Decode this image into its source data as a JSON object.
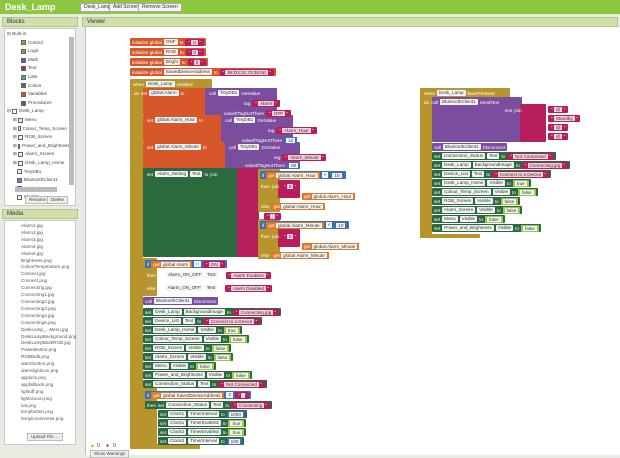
{
  "app": {
    "title": "Desk_Lamp",
    "screen_button": "Desk_Lamp ▾",
    "add_screen": "Add Screen ...",
    "remove_screen": "Remove Screen"
  },
  "blocks_panel": {
    "header": "Blocks",
    "builtin": "Built-in",
    "builtin_items": [
      {
        "label": "Control",
        "color": "#b8952c"
      },
      {
        "label": "Logic",
        "color": "#7da33a"
      },
      {
        "label": "Math",
        "color": "#3c6fb4"
      },
      {
        "label": "Text",
        "color": "#b81e5b"
      },
      {
        "label": "Lists",
        "color": "#4aa3b8"
      },
      {
        "label": "Colors",
        "color": "#666666"
      },
      {
        "label": "Variables",
        "color": "#d8572a"
      },
      {
        "label": "Procedures",
        "color": "#6a4a8c"
      }
    ],
    "screen": "Desk_Lamp",
    "components": [
      "Menu",
      "Colour_Temp_Screen",
      "RGB_Screen",
      "Power_and_Brightness",
      "Alarm_Screen",
      "Desk_Lamp_Home",
      "TinyDB1",
      "BluetoothClient1",
      "Clock1",
      "Clock2"
    ],
    "rename": "Rename",
    "delete": "Delete"
  },
  "media": {
    "header": "Media",
    "files": [
      "Alarm1.jpg",
      "Alarm2.jpg",
      "Alarm3.jpg",
      "Alarm4.jpg",
      "Alarm5.jpg",
      "Brightness.png",
      "ColourTemperature.png",
      "Connect.jpg",
      "Connect.png",
      "Connecting.jpg",
      "Connecting1.jpg",
      "Connecting2.jpg",
      "Connecting3.png",
      "Connecting4.jpg",
      "Connecting5.png",
      "DeskLamp_...Menu.jpg",
      "DeskLampBackground.png",
      "DeskLampBackRGB.jpg",
      "PowerButton.png",
      "RGBBulb.png",
      "alarmbutton.png",
      "alarmlighticon.png",
      "applock.png",
      "appfallback.png",
      "lightoff.png",
      "lightonicon.png",
      "sat.png",
      "tempbutton.png",
      "tempiconinverse.png"
    ],
    "upload": "Upload File ..."
  },
  "viewer": {
    "header": "Viewer",
    "warnings": "0",
    "errors": "0",
    "show_warnings": "Show Warnings"
  },
  "colors": {
    "variables": "#d8572a",
    "text": "#b81e5b",
    "setter": "#2b6a3e",
    "procedure": "#7a4d9e",
    "event": "#b8952c",
    "math": "#3c6fb4",
    "logic": "#9bc94a"
  },
  "block_rows": [
    [
      [
        "k",
        "initialize global"
      ],
      [
        "f",
        "ONF"
      ],
      [
        "k",
        "to"
      ],
      [
        "s",
        "0"
      ]
    ],
    [
      [
        "k",
        "initialize global"
      ],
      [
        "f",
        "RGB"
      ],
      [
        "k",
        "to"
      ],
      [
        "s",
        "0"
      ]
    ],
    [
      [
        "k",
        "initialize global"
      ],
      [
        "f",
        "Bright"
      ],
      [
        "k",
        "to"
      ],
      [
        "s",
        "0"
      ]
    ],
    [
      [
        "k",
        "initialize global"
      ],
      [
        "f",
        "SavedDeviceAddress"
      ],
      [
        "k",
        "to"
      ],
      [
        "s",
        "98:D3:31:70:38:5E"
      ]
    ],
    [
      [
        "k",
        "when"
      ],
      [
        "f",
        "Desk_Lamp"
      ],
      [
        "k",
        "Initialize"
      ]
    ],
    [
      [
        "k",
        "do"
      ],
      [
        "k",
        "set"
      ],
      [
        "f",
        "global Alarm"
      ],
      [
        "k",
        "to"
      ]
    ],
    [
      [
        "k",
        "call"
      ],
      [
        "f",
        "TinyDB1"
      ],
      [
        "k",
        "GetValue"
      ]
    ],
    [
      [
        "k",
        "tag"
      ],
      [
        "s",
        "Alarm"
      ]
    ],
    [
      [
        "k",
        "valueIfTagNotThere"
      ],
      [
        "s",
        "OFF"
      ]
    ],
    [
      [
        "k",
        "set"
      ],
      [
        "f",
        "global Alarm_Hour"
      ],
      [
        "k",
        "to"
      ]
    ],
    [
      [
        "k",
        "call"
      ],
      [
        "f",
        "TinyDB1"
      ],
      [
        "k",
        "GetValue"
      ]
    ],
    [
      [
        "k",
        "tag"
      ],
      [
        "s",
        "Alarm_Hour"
      ]
    ],
    [
      [
        "k",
        "valueIfTagNotThere"
      ],
      [
        "n",
        "12"
      ]
    ],
    [
      [
        "k",
        "set"
      ],
      [
        "f",
        "global Alarm_Minute"
      ],
      [
        "k",
        "to"
      ]
    ],
    [
      [
        "k",
        "call"
      ],
      [
        "f",
        "TinyDB1"
      ],
      [
        "k",
        "GetValue"
      ]
    ],
    [
      [
        "k",
        "tag"
      ],
      [
        "s",
        "Alarm_Minute"
      ]
    ],
    [
      [
        "k",
        "valueIfTagNotThere"
      ],
      [
        "n",
        "00"
      ]
    ],
    [
      [
        "k",
        "set"
      ],
      [
        "f",
        "Alarm_Setting"
      ],
      [
        "f",
        "Text"
      ],
      [
        "k",
        "to"
      ],
      [
        "k",
        "join"
      ]
    ],
    [
      [
        "k",
        "if"
      ],
      [
        "g",
        "global Alarm_Hour"
      ],
      [
        "o",
        "<"
      ],
      [
        "n",
        "10"
      ]
    ],
    [
      [
        "k",
        "then"
      ],
      [
        "k",
        "join"
      ],
      [
        "s",
        "0"
      ]
    ],
    [
      [
        "g",
        "global Alarm_Hour"
      ]
    ],
    [
      [
        "k",
        "else"
      ],
      [
        "g",
        "global Alarm_Hour"
      ]
    ],
    [
      [
        "s",
        ":"
      ]
    ],
    [
      [
        "k",
        "if"
      ],
      [
        "g",
        "global Alarm_Minute"
      ],
      [
        "o",
        "<"
      ],
      [
        "n",
        "10"
      ]
    ],
    [
      [
        "k",
        "then"
      ],
      [
        "k",
        "join"
      ],
      [
        "s",
        "0"
      ]
    ],
    [
      [
        "g",
        "global Alarm_Minute"
      ]
    ],
    [
      [
        "k",
        "else"
      ],
      [
        "g",
        "global Alarm_Minute"
      ]
    ],
    [
      [
        "k",
        "if"
      ],
      [
        "g",
        "global Alarm"
      ],
      [
        "o",
        "="
      ],
      [
        "s",
        "ON"
      ]
    ],
    [
      [
        "k",
        "then"
      ],
      [
        "k",
        "set"
      ],
      [
        "f",
        "Alarm_ON_OFF"
      ],
      [
        "f",
        "Text"
      ],
      [
        "k",
        "to"
      ],
      [
        "s",
        "Alarm Enabled"
      ]
    ],
    [
      [
        "k",
        "else"
      ],
      [
        "k",
        "set"
      ],
      [
        "f",
        "Alarm_ON_OFF"
      ],
      [
        "f",
        "Text"
      ],
      [
        "k",
        "to"
      ],
      [
        "s",
        "Alarm Disabled"
      ]
    ],
    [
      [
        "k",
        "call"
      ],
      [
        "f",
        "BluetoothClient1"
      ],
      [
        "k",
        "Disconnect"
      ]
    ],
    [
      [
        "k",
        "set"
      ],
      [
        "f",
        "Desk_Lamp"
      ],
      [
        "f",
        "BackgroundImage"
      ],
      [
        "k",
        "to"
      ],
      [
        "s",
        "Connecting.jpg"
      ]
    ],
    [
      [
        "k",
        "set"
      ],
      [
        "f",
        "Device_List"
      ],
      [
        "f",
        "Text"
      ],
      [
        "k",
        "to"
      ],
      [
        "s",
        "Connect to a Device"
      ]
    ],
    [
      [
        "k",
        "set"
      ],
      [
        "f",
        "Desk_Lamp_Home"
      ],
      [
        "f",
        "Visible"
      ],
      [
        "k",
        "to"
      ],
      [
        "b",
        "true"
      ]
    ],
    [
      [
        "k",
        "set"
      ],
      [
        "f",
        "Colour_Temp_Screen"
      ],
      [
        "f",
        "Visible"
      ],
      [
        "k",
        "to"
      ],
      [
        "b",
        "false"
      ]
    ],
    [
      [
        "k",
        "set"
      ],
      [
        "f",
        "RGB_Screen"
      ],
      [
        "f",
        "Visible"
      ],
      [
        "k",
        "to"
      ],
      [
        "b",
        "false"
      ]
    ],
    [
      [
        "k",
        "set"
      ],
      [
        "f",
        "Alarm_Screen"
      ],
      [
        "f",
        "Visible"
      ],
      [
        "k",
        "to"
      ],
      [
        "b",
        "false"
      ]
    ],
    [
      [
        "k",
        "set"
      ],
      [
        "f",
        "Menu"
      ],
      [
        "f",
        "Visible"
      ],
      [
        "k",
        "to"
      ],
      [
        "b",
        "false"
      ]
    ],
    [
      [
        "k",
        "set"
      ],
      [
        "f",
        "Power_and_Brightness"
      ],
      [
        "f",
        "Visible"
      ],
      [
        "k",
        "to"
      ],
      [
        "b",
        "false"
      ]
    ],
    [
      [
        "k",
        "set"
      ],
      [
        "f",
        "Connection_Status"
      ],
      [
        "f",
        "Text"
      ],
      [
        "k",
        "to"
      ],
      [
        "s",
        "Not Connected"
      ]
    ],
    [
      [
        "k",
        "if"
      ],
      [
        "g",
        "global SavedDeviceAddress"
      ],
      [
        "o",
        "≠"
      ],
      [
        "s",
        ""
      ]
    ],
    [
      [
        "k",
        "then"
      ],
      [
        "k",
        "set"
      ],
      [
        "f",
        "Connection_Status"
      ],
      [
        "f",
        "Text"
      ],
      [
        "k",
        "to"
      ],
      [
        "s",
        "Connecting"
      ]
    ],
    [
      [
        "k",
        "set"
      ],
      [
        "f",
        "Clock1"
      ],
      [
        "f",
        "TimerInterval"
      ],
      [
        "k",
        "to"
      ],
      [
        "n",
        "1000"
      ]
    ],
    [
      [
        "k",
        "set"
      ],
      [
        "f",
        "Clock1"
      ],
      [
        "f",
        "TimerEnabled"
      ],
      [
        "k",
        "to"
      ],
      [
        "b",
        "true"
      ]
    ],
    [
      [
        "k",
        "set"
      ],
      [
        "f",
        "Clock2"
      ],
      [
        "f",
        "TimerEnabled"
      ],
      [
        "k",
        "to"
      ],
      [
        "b",
        "true"
      ]
    ],
    [
      [
        "k",
        "set"
      ],
      [
        "f",
        "Clock2"
      ],
      [
        "f",
        "TimerInterval"
      ],
      [
        "k",
        "to"
      ],
      [
        "n",
        "100"
      ]
    ],
    [
      [
        "k",
        "when"
      ],
      [
        "f",
        "Desk_Lamp"
      ],
      [
        "k",
        "BackPressed"
      ]
    ],
    [
      [
        "k",
        "do"
      ],
      [
        "k",
        "call"
      ],
      [
        "f",
        "BluetoothClient1"
      ],
      [
        "k",
        "SendText"
      ]
    ],
    [
      [
        "k",
        "text"
      ],
      [
        "k",
        "join"
      ]
    ],
    [
      [
        "s",
        "@"
      ]
    ],
    [
      [
        "s",
        "Standby"
      ]
    ],
    [
      [
        "s",
        "@"
      ]
    ],
    [
      [
        "s",
        "@"
      ]
    ],
    [
      [
        "k",
        "call"
      ],
      [
        "f",
        "BluetoothClient1"
      ],
      [
        "k",
        "Disconnect"
      ]
    ],
    [
      [
        "k",
        "set"
      ],
      [
        "f",
        "Connection_Status"
      ],
      [
        "f",
        "Text"
      ],
      [
        "k",
        "to"
      ],
      [
        "s",
        "Not Connected"
      ]
    ],
    [
      [
        "k",
        "set"
      ],
      [
        "f",
        "Desk_Lamp"
      ],
      [
        "f",
        "BackgroundImage"
      ],
      [
        "k",
        "to"
      ],
      [
        "s",
        "Connecting.jpg"
      ]
    ],
    [
      [
        "k",
        "set"
      ],
      [
        "f",
        "Device_List"
      ],
      [
        "f",
        "Text"
      ],
      [
        "k",
        "to"
      ],
      [
        "s",
        "Connect to a Device"
      ]
    ],
    [
      [
        "k",
        "set"
      ],
      [
        "f",
        "Desk_Lamp_Home"
      ],
      [
        "f",
        "Visible"
      ],
      [
        "k",
        "to"
      ],
      [
        "b",
        "true"
      ]
    ],
    [
      [
        "k",
        "set"
      ],
      [
        "f",
        "Colour_Temp_Screen"
      ],
      [
        "f",
        "Visible"
      ],
      [
        "k",
        "to"
      ],
      [
        "b",
        "false"
      ]
    ],
    [
      [
        "k",
        "set"
      ],
      [
        "f",
        "RGB_Screen"
      ],
      [
        "f",
        "Visible"
      ],
      [
        "k",
        "to"
      ],
      [
        "b",
        "false"
      ]
    ],
    [
      [
        "k",
        "set"
      ],
      [
        "f",
        "Alarm_Screen"
      ],
      [
        "f",
        "Visible"
      ],
      [
        "k",
        "to"
      ],
      [
        "b",
        "false"
      ]
    ],
    [
      [
        "k",
        "set"
      ],
      [
        "f",
        "Menu"
      ],
      [
        "f",
        "Visible"
      ],
      [
        "k",
        "to"
      ],
      [
        "b",
        "false"
      ]
    ],
    [
      [
        "k",
        "set"
      ],
      [
        "f",
        "Power_and_Brightness"
      ],
      [
        "f",
        "Visible"
      ],
      [
        "k",
        "to"
      ],
      [
        "b",
        "false"
      ]
    ]
  ]
}
